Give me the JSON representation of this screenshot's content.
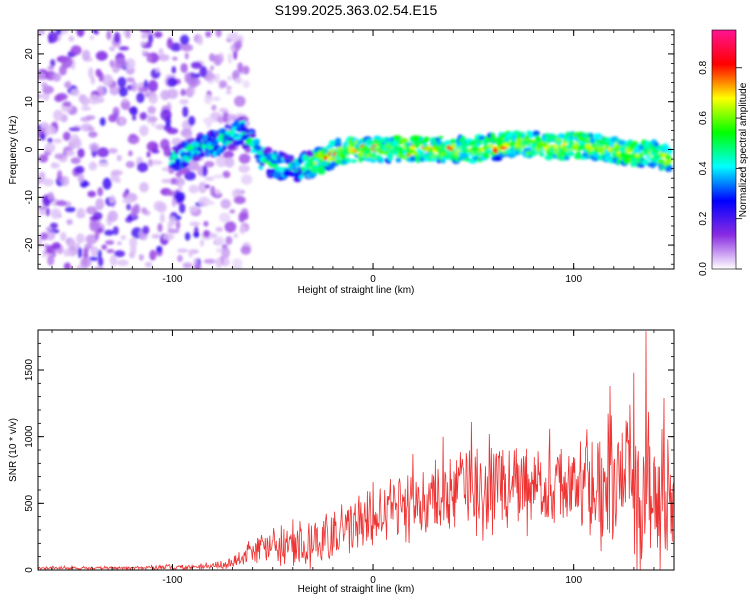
{
  "title": "S199.2025.363.02.54.E15",
  "chart_data": [
    {
      "type": "heatmap",
      "xlabel": "Height of straight line (km)",
      "ylabel": "Frequency (Hz)",
      "xlim": [
        -167,
        150
      ],
      "ylim": [
        -25,
        25
      ],
      "xticks": [
        -100,
        0,
        100
      ],
      "xtick_labels": [
        "-100",
        "0",
        "100"
      ],
      "yticks": [
        -20,
        -10,
        0,
        10,
        20
      ],
      "ytick_labels": [
        "-20",
        "-10",
        "0",
        "10",
        "20"
      ],
      "noise_region_x": [
        -167,
        -75
      ],
      "signal_ridge": {
        "x": [
          -100,
          -90,
          -80,
          -70,
          -65,
          -60,
          -55,
          -50,
          -40,
          -30,
          -20,
          -10,
          0,
          10,
          20,
          30,
          40,
          50,
          60,
          70,
          80,
          90,
          100,
          110,
          120,
          130,
          140,
          148
        ],
        "y": [
          -2,
          0,
          1,
          3,
          4,
          1,
          -2,
          -3,
          -4,
          -3,
          -1,
          0,
          0,
          0,
          0,
          0,
          0,
          0,
          0.5,
          1,
          1,
          0.5,
          1,
          0.5,
          0,
          -1,
          -1,
          -2
        ]
      },
      "colorbar": {
        "label": "Normalized spectral amplitude",
        "ticks": [
          0.0,
          0.2,
          0.4,
          0.6,
          0.8
        ],
        "tick_labels": [
          "0.0",
          "0.2",
          "0.4",
          "0.6",
          "0.8"
        ],
        "range": [
          0,
          0.95
        ],
        "colors": [
          "#ffffff",
          "#8a2be2",
          "#0000ff",
          "#00ffff",
          "#00ff00",
          "#ffff00",
          "#ff0000",
          "#ff1493"
        ]
      }
    },
    {
      "type": "line",
      "xlabel": "Height of straight line (km)",
      "ylabel": "SNR (10 * v/v)",
      "xlim": [
        -167,
        150
      ],
      "ylim": [
        0,
        1800
      ],
      "xticks": [
        -100,
        0,
        100
      ],
      "xtick_labels": [
        "-100",
        "0",
        "100"
      ],
      "yticks": [
        0,
        500,
        1000,
        1500
      ],
      "ytick_labels": [
        "0",
        "500",
        "1000",
        "1500"
      ],
      "color": "#ee3333",
      "envelope": {
        "x": [
          -167,
          -120,
          -90,
          -75,
          -70,
          -60,
          -50,
          -40,
          -30,
          -20,
          -10,
          0,
          10,
          20,
          30,
          40,
          50,
          60,
          70,
          80,
          90,
          100,
          110,
          120,
          130,
          135,
          140,
          145,
          150
        ],
        "mean": [
          15,
          15,
          25,
          35,
          60,
          130,
          170,
          200,
          200,
          270,
          330,
          380,
          440,
          490,
          520,
          570,
          600,
          620,
          620,
          640,
          630,
          600,
          620,
          650,
          600,
          580,
          520,
          500,
          480
        ],
        "spread": [
          15,
          15,
          25,
          35,
          50,
          150,
          180,
          200,
          220,
          250,
          260,
          280,
          300,
          330,
          380,
          430,
          450,
          420,
          420,
          380,
          380,
          450,
          500,
          600,
          700,
          800,
          700,
          650,
          550
        ]
      },
      "peaks": [
        {
          "x": -40,
          "y": 380
        },
        {
          "x": 0,
          "y": 660
        },
        {
          "x": 20,
          "y": 870
        },
        {
          "x": 35,
          "y": 1000
        },
        {
          "x": 49,
          "y": 1110
        },
        {
          "x": 58,
          "y": 1020
        },
        {
          "x": 88,
          "y": 1060
        },
        {
          "x": 118,
          "y": 1380
        },
        {
          "x": 130,
          "y": 1480
        },
        {
          "x": 136,
          "y": 1790
        },
        {
          "x": 145,
          "y": 1290
        }
      ]
    }
  ]
}
